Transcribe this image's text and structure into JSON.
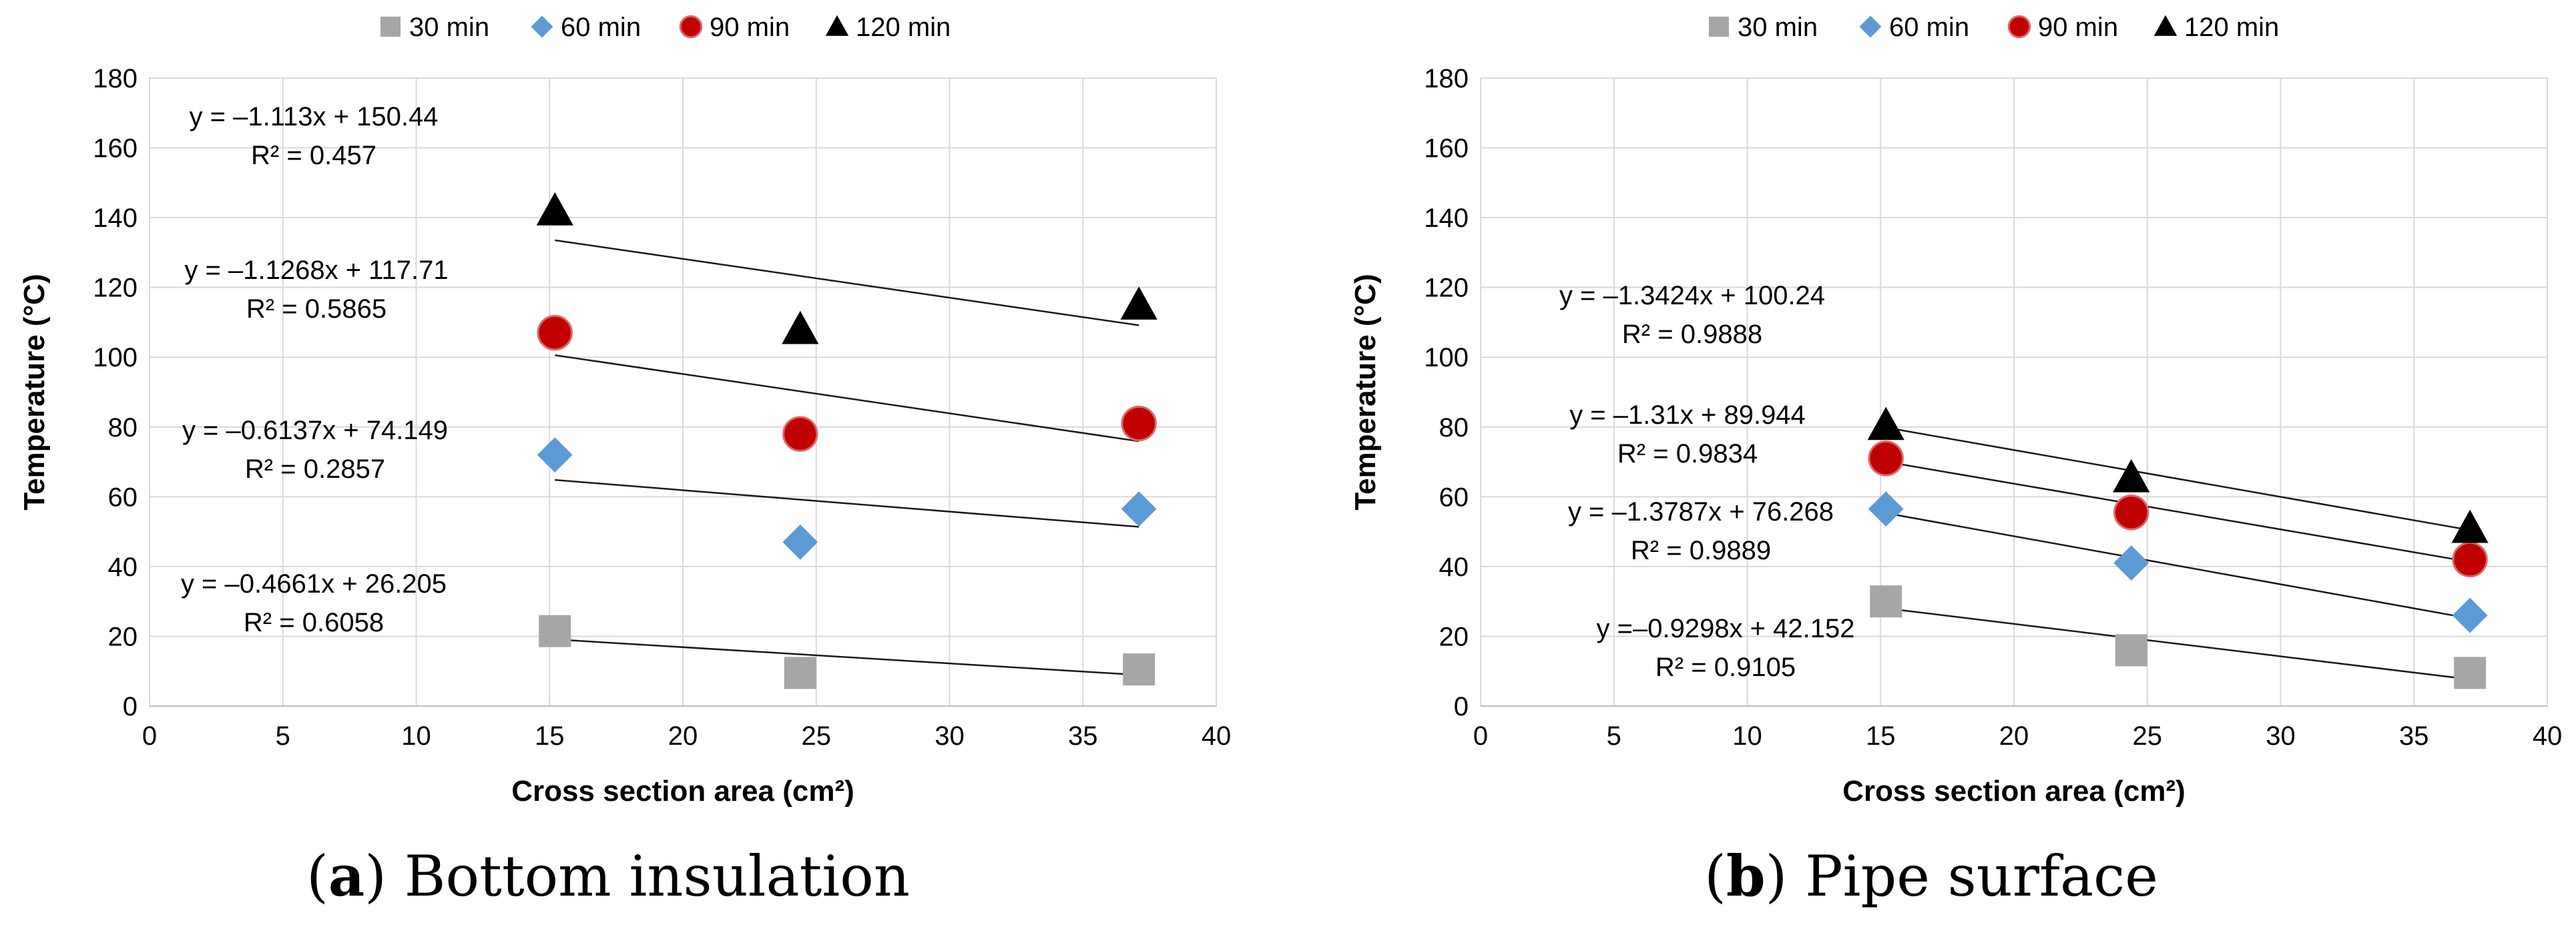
{
  "chart_data": [
    {
      "type": "scatter",
      "panel_letter": "a",
      "caption": "Bottom insulation",
      "xlabel": "Cross section area (cm²)",
      "ylabel": "Temperature (°C)",
      "xlim": [
        0,
        40
      ],
      "ylim": [
        0,
        180
      ],
      "x_ticks": [
        0,
        5,
        10,
        15,
        20,
        25,
        30,
        35,
        40
      ],
      "y_ticks": [
        0,
        20,
        40,
        60,
        80,
        100,
        120,
        140,
        160,
        180
      ],
      "grid": true,
      "legend_position": "top",
      "series": [
        {
          "name": "30 min",
          "marker": "square",
          "color": "#a6a6a6",
          "x": [
            15.2,
            24.4,
            37.1
          ],
          "y": [
            21.5,
            9.5,
            10.5
          ],
          "trendline": {
            "slope": -0.4661,
            "intercept": 26.205
          },
          "equation": "y = –0.4661x + 26.205",
          "r2": "R² = 0.6058"
        },
        {
          "name": "60 min",
          "marker": "diamond",
          "color": "#5b9bd5",
          "x": [
            15.2,
            24.4,
            37.1
          ],
          "y": [
            72,
            47,
            56.5
          ],
          "trendline": {
            "slope": -0.6137,
            "intercept": 74.149
          },
          "equation": "y = –0.6137x + 74.149",
          "r2": "R² = 0.2857"
        },
        {
          "name": "90 min",
          "marker": "circle",
          "color": "#c00000",
          "x": [
            15.2,
            24.4,
            37.1
          ],
          "y": [
            107,
            78,
            81
          ],
          "trendline": {
            "slope": -1.1268,
            "intercept": 117.71
          },
          "equation": "y = –1.1268x + 117.71",
          "r2": "R² = 0.5865"
        },
        {
          "name": "120 min",
          "marker": "triangle",
          "color": "#000000",
          "x": [
            15.2,
            24.4,
            37.1
          ],
          "y": [
            142,
            108,
            115
          ],
          "trendline": {
            "slope": -1.113,
            "intercept": 150.44
          },
          "equation": "y = –1.113x + 150.44",
          "r2": "R² = 0.457"
        }
      ]
    },
    {
      "type": "scatter",
      "panel_letter": "b",
      "caption": "Pipe surface",
      "xlabel": "Cross section area (cm²)",
      "ylabel": "Temperature (°C)",
      "xlim": [
        0,
        40
      ],
      "ylim": [
        0,
        180
      ],
      "x_ticks": [
        0,
        5,
        10,
        15,
        20,
        25,
        30,
        35,
        40
      ],
      "y_ticks": [
        0,
        20,
        40,
        60,
        80,
        100,
        120,
        140,
        160,
        180
      ],
      "grid": true,
      "legend_position": "top",
      "series": [
        {
          "name": "30 min",
          "marker": "square",
          "color": "#a6a6a6",
          "x": [
            15.2,
            24.4,
            37.1
          ],
          "y": [
            30,
            16,
            9.5
          ],
          "trendline": {
            "slope": -0.9298,
            "intercept": 42.152
          },
          "equation": "y =–0.9298x + 42.152",
          "r2": "R² = 0.9105"
        },
        {
          "name": "60 min",
          "marker": "diamond",
          "color": "#5b9bd5",
          "x": [
            15.2,
            24.4,
            37.1
          ],
          "y": [
            56.5,
            41,
            26
          ],
          "trendline": {
            "slope": -1.3787,
            "intercept": 76.268
          },
          "equation": "y = –1.3787x + 76.268",
          "r2": "R² = 0.9889"
        },
        {
          "name": "90 min",
          "marker": "circle",
          "color": "#c00000",
          "x": [
            15.2,
            24.4,
            37.1
          ],
          "y": [
            71,
            55.5,
            42
          ],
          "trendline": {
            "slope": -1.31,
            "intercept": 89.944
          },
          "equation": "y = –1.31x + 89.944",
          "r2": "R² = 0.9834"
        },
        {
          "name": "120 min",
          "marker": "triangle",
          "color": "#000000",
          "x": [
            15.2,
            24.4,
            37.1
          ],
          "y": [
            80.5,
            65.5,
            51
          ],
          "trendline": {
            "slope": -1.3424,
            "intercept": 100.24
          },
          "equation": "y = –1.3424x + 100.24",
          "r2": "R² = 0.9888"
        }
      ]
    }
  ]
}
